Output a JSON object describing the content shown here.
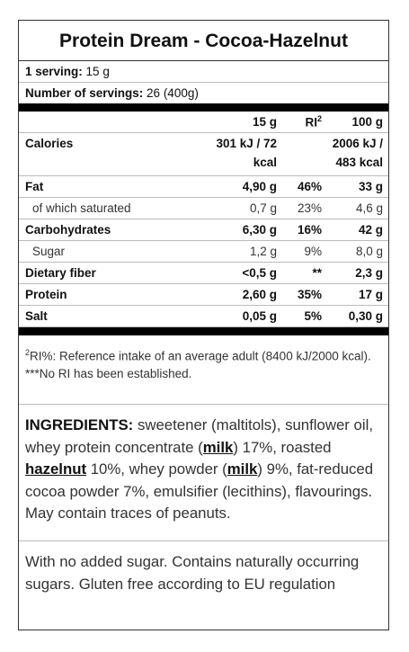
{
  "title": "Protein Dream - Cocoa-Hazelnut",
  "serving": {
    "label": "1 serving:",
    "value": "15 g"
  },
  "servings": {
    "label": "Number of servings:",
    "value": "26 (400g)"
  },
  "table": {
    "header": {
      "per_serving": "15 g",
      "ri": "RI",
      "ri_sup": "2",
      "per_100g": "100 g"
    },
    "rows": [
      {
        "name": "Calories",
        "per_serving": [
          "301 kJ / 72",
          "kcal"
        ],
        "per_100g": [
          "2006 kJ /",
          "483 kcal"
        ]
      },
      {
        "name": "Fat",
        "per_serving": "4,90 g",
        "ri": "46%",
        "per_100g": "33 g"
      },
      {
        "name": "of which saturated",
        "per_serving": "0,7 g",
        "ri": "23%",
        "per_100g": "4,6 g"
      },
      {
        "name": "Carbohydrates",
        "per_serving": "6,30 g",
        "ri": "16%",
        "per_100g": "42 g"
      },
      {
        "name": "Sugar",
        "per_serving": "1,2 g",
        "ri": "9%",
        "per_100g": "8,0 g"
      },
      {
        "name": "Dietary fiber",
        "per_serving": "<0,5 g",
        "ri": "**",
        "per_100g": "2,3 g"
      },
      {
        "name": "Protein",
        "per_serving": "2,60 g",
        "ri": "35%",
        "per_100g": "17 g"
      },
      {
        "name": "Salt",
        "per_serving": "0,05 g",
        "ri": "5%",
        "per_100g": "0,30 g"
      }
    ]
  },
  "footnotes": {
    "sup": "2",
    "ri_note": "RI%: Reference intake of an average adult (8400 kJ/2000 kcal).",
    "no_ri": "***No RI has been established."
  },
  "ingredients": {
    "parts": [
      "INGREDIENTS:",
      " sweetener (maltitols), sunflower oil, whey protein concentrate (",
      "milk",
      ") 17%, roasted ",
      "hazelnut",
      " 10%, whey powder (",
      "milk",
      ") 9%, fat-reduced cocoa powder 7%, emulsifier (lecithins), flavourings. May contain traces of peanuts."
    ]
  },
  "statement": "With no added sugar. Contains naturally occurring sugars. Gluten free according to EU regulation"
}
